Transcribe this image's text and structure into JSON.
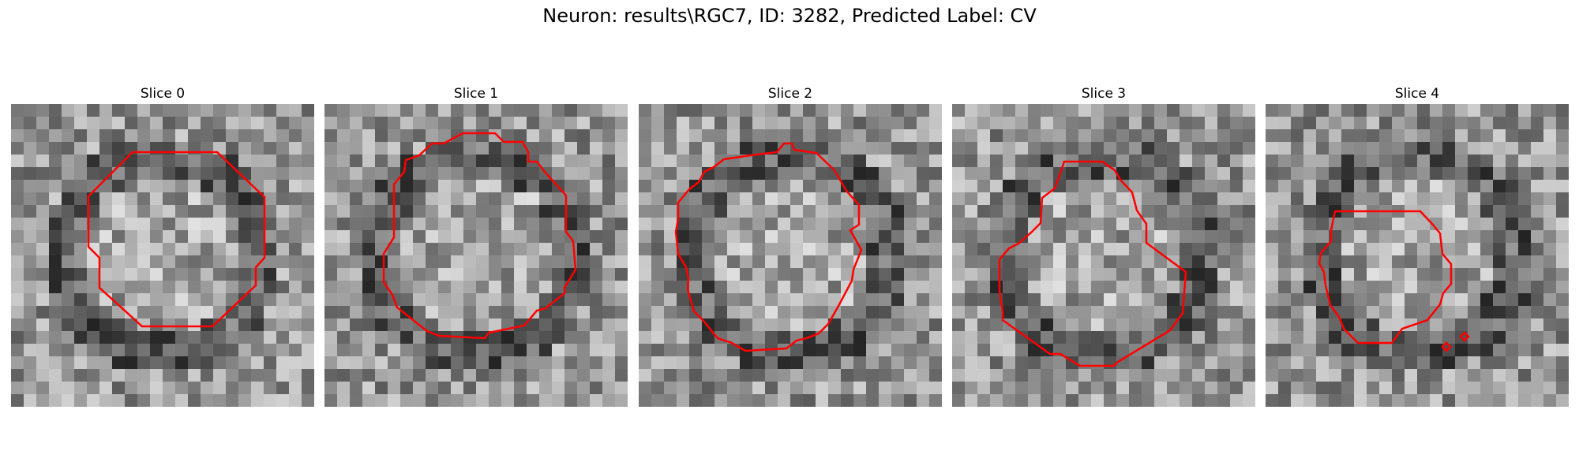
{
  "figure": {
    "title": "Neuron: results\\RGC7, ID: 3282, Predicted Label: CV",
    "panels": [
      {
        "title": "Slice 0",
        "seed": 11
      },
      {
        "title": "Slice 1",
        "seed": 23
      },
      {
        "title": "Slice 2",
        "seed": 37
      },
      {
        "title": "Slice 3",
        "seed": 51
      },
      {
        "title": "Slice 4",
        "seed": 67
      }
    ],
    "contour_color": "#ff0000"
  }
}
